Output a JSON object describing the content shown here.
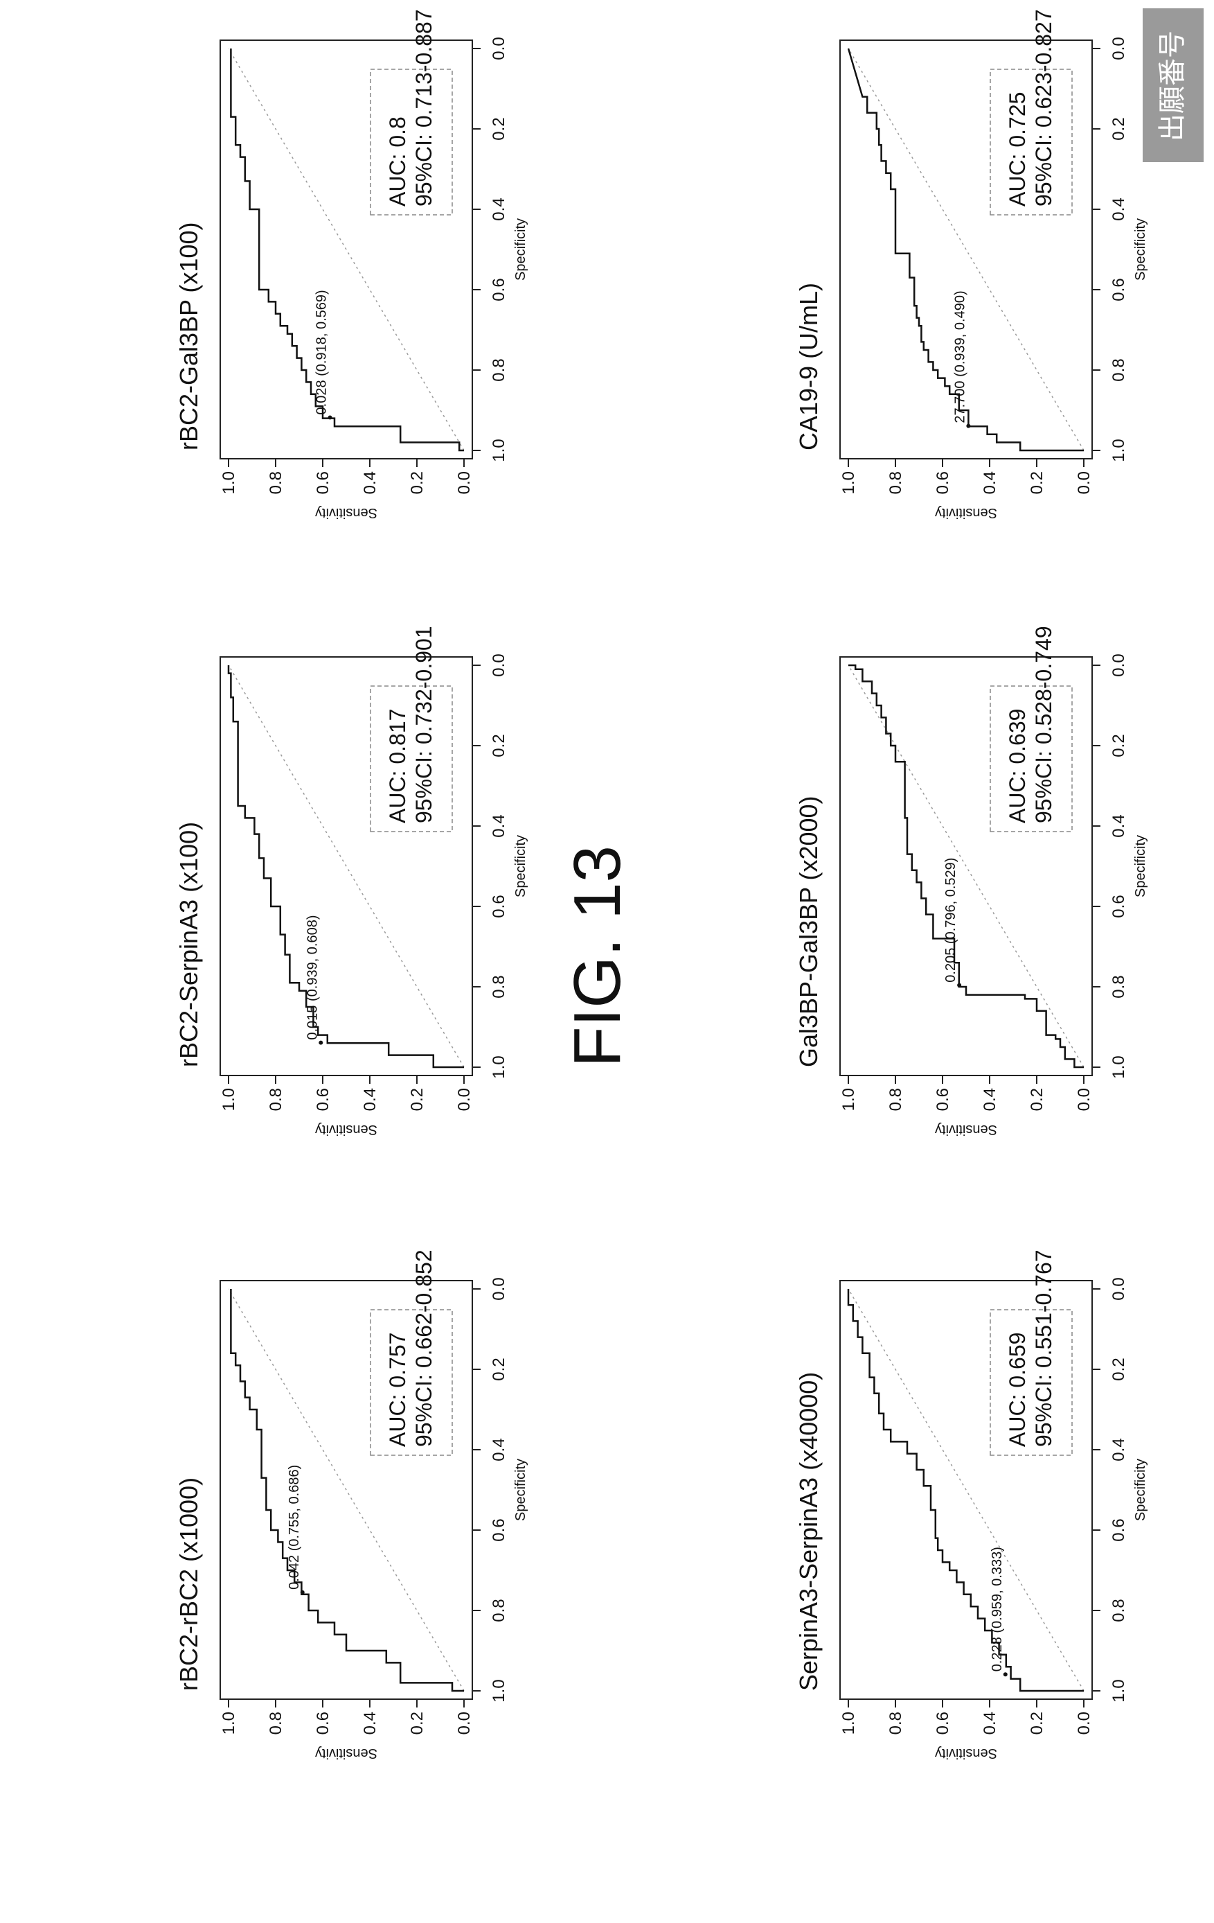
{
  "figure": {
    "title": "FIG. 13",
    "stamp": "出願番号"
  },
  "axes_labels": {
    "x": "Specificity",
    "y": "Sensitivity",
    "ticks": [
      "1.0",
      "0.8",
      "0.6",
      "0.4",
      "0.2",
      "0.0"
    ]
  },
  "chart_data": [
    {
      "type": "line",
      "title": "rBC2-rBC2 (x1000)",
      "xlabel": "Specificity",
      "ylabel": "Sensitivity",
      "xlim": [
        1.0,
        0.0
      ],
      "ylim": [
        0.0,
        1.0
      ],
      "auc_text": "AUC: 0.757",
      "ci_text": "95%CI: 0.662-0.852",
      "threshold_text": "0.042 (0.755, 0.686)",
      "threshold_point": [
        0.755,
        0.686
      ],
      "roc": [
        [
          1.0,
          0.0
        ],
        [
          1.0,
          0.05
        ],
        [
          0.98,
          0.05
        ],
        [
          0.98,
          0.27
        ],
        [
          0.93,
          0.27
        ],
        [
          0.93,
          0.33
        ],
        [
          0.9,
          0.33
        ],
        [
          0.9,
          0.5
        ],
        [
          0.86,
          0.5
        ],
        [
          0.86,
          0.55
        ],
        [
          0.83,
          0.55
        ],
        [
          0.83,
          0.62
        ],
        [
          0.8,
          0.62
        ],
        [
          0.8,
          0.66
        ],
        [
          0.76,
          0.66
        ],
        [
          0.76,
          0.69
        ],
        [
          0.73,
          0.69
        ],
        [
          0.73,
          0.72
        ],
        [
          0.7,
          0.72
        ],
        [
          0.7,
          0.75
        ],
        [
          0.67,
          0.75
        ],
        [
          0.67,
          0.77
        ],
        [
          0.63,
          0.77
        ],
        [
          0.63,
          0.79
        ],
        [
          0.6,
          0.79
        ],
        [
          0.6,
          0.82
        ],
        [
          0.55,
          0.82
        ],
        [
          0.55,
          0.84
        ],
        [
          0.47,
          0.84
        ],
        [
          0.47,
          0.86
        ],
        [
          0.35,
          0.86
        ],
        [
          0.35,
          0.88
        ],
        [
          0.3,
          0.88
        ],
        [
          0.3,
          0.91
        ],
        [
          0.27,
          0.91
        ],
        [
          0.27,
          0.93
        ],
        [
          0.23,
          0.93
        ],
        [
          0.23,
          0.95
        ],
        [
          0.19,
          0.95
        ],
        [
          0.19,
          0.97
        ],
        [
          0.16,
          0.97
        ],
        [
          0.16,
          0.99
        ],
        [
          0.0,
          0.99
        ]
      ]
    },
    {
      "type": "line",
      "title": "rBC2-SerpinA3 (x100)",
      "xlabel": "Specificity",
      "ylabel": "Sensitivity",
      "xlim": [
        1.0,
        0.0
      ],
      "ylim": [
        0.0,
        1.0
      ],
      "auc_text": "AUC: 0.817",
      "ci_text": "95%CI: 0.732-0.901",
      "threshold_text": "0.015 (0.939, 0.608)",
      "threshold_point": [
        0.939,
        0.608
      ],
      "roc": [
        [
          1.0,
          0.0
        ],
        [
          1.0,
          0.13
        ],
        [
          0.97,
          0.13
        ],
        [
          0.97,
          0.32
        ],
        [
          0.94,
          0.32
        ],
        [
          0.94,
          0.58
        ],
        [
          0.92,
          0.58
        ],
        [
          0.92,
          0.62
        ],
        [
          0.9,
          0.62
        ],
        [
          0.9,
          0.64
        ],
        [
          0.85,
          0.64
        ],
        [
          0.85,
          0.67
        ],
        [
          0.81,
          0.67
        ],
        [
          0.81,
          0.7
        ],
        [
          0.79,
          0.7
        ],
        [
          0.79,
          0.74
        ],
        [
          0.72,
          0.74
        ],
        [
          0.72,
          0.76
        ],
        [
          0.67,
          0.76
        ],
        [
          0.67,
          0.78
        ],
        [
          0.6,
          0.78
        ],
        [
          0.6,
          0.82
        ],
        [
          0.53,
          0.82
        ],
        [
          0.53,
          0.85
        ],
        [
          0.48,
          0.85
        ],
        [
          0.48,
          0.87
        ],
        [
          0.42,
          0.87
        ],
        [
          0.42,
          0.89
        ],
        [
          0.38,
          0.89
        ],
        [
          0.38,
          0.93
        ],
        [
          0.35,
          0.93
        ],
        [
          0.35,
          0.96
        ],
        [
          0.14,
          0.96
        ],
        [
          0.14,
          0.98
        ],
        [
          0.08,
          0.98
        ],
        [
          0.08,
          0.99
        ],
        [
          0.02,
          0.99
        ],
        [
          0.02,
          1.0
        ],
        [
          0.0,
          1.0
        ]
      ]
    },
    {
      "type": "line",
      "title": "rBC2-Gal3BP (x100)",
      "xlabel": "Specificity",
      "ylabel": "Sensitivity",
      "xlim": [
        1.0,
        0.0
      ],
      "ylim": [
        0.0,
        1.0
      ],
      "auc_text": "AUC: 0.8",
      "ci_text": "95%CI: 0.713-0.887",
      "threshold_text": "0.028 (0.918, 0.569)",
      "threshold_point": [
        0.918,
        0.569
      ],
      "roc": [
        [
          1.0,
          0.0
        ],
        [
          1.0,
          0.02
        ],
        [
          0.98,
          0.02
        ],
        [
          0.98,
          0.27
        ],
        [
          0.94,
          0.27
        ],
        [
          0.94,
          0.55
        ],
        [
          0.92,
          0.55
        ],
        [
          0.92,
          0.6
        ],
        [
          0.89,
          0.6
        ],
        [
          0.89,
          0.63
        ],
        [
          0.86,
          0.63
        ],
        [
          0.86,
          0.65
        ],
        [
          0.83,
          0.65
        ],
        [
          0.83,
          0.67
        ],
        [
          0.8,
          0.67
        ],
        [
          0.8,
          0.69
        ],
        [
          0.77,
          0.69
        ],
        [
          0.77,
          0.71
        ],
        [
          0.74,
          0.71
        ],
        [
          0.74,
          0.73
        ],
        [
          0.71,
          0.73
        ],
        [
          0.71,
          0.75
        ],
        [
          0.69,
          0.75
        ],
        [
          0.69,
          0.78
        ],
        [
          0.66,
          0.78
        ],
        [
          0.66,
          0.8
        ],
        [
          0.63,
          0.8
        ],
        [
          0.63,
          0.83
        ],
        [
          0.6,
          0.83
        ],
        [
          0.6,
          0.87
        ],
        [
          0.4,
          0.87
        ],
        [
          0.4,
          0.91
        ],
        [
          0.33,
          0.91
        ],
        [
          0.33,
          0.93
        ],
        [
          0.27,
          0.93
        ],
        [
          0.27,
          0.95
        ],
        [
          0.24,
          0.95
        ],
        [
          0.24,
          0.97
        ],
        [
          0.17,
          0.97
        ],
        [
          0.17,
          0.99
        ],
        [
          0.0,
          0.99
        ]
      ]
    },
    {
      "type": "line",
      "title": "SerpinA3-SerpinA3 (x40000)",
      "xlabel": "Specificity",
      "ylabel": "Sensitivity",
      "xlim": [
        1.0,
        0.0
      ],
      "ylim": [
        0.0,
        1.0
      ],
      "auc_text": "AUC: 0.659",
      "ci_text": "95%CI: 0.551-0.767",
      "threshold_text": "0.228 (0.959, 0.333)",
      "threshold_point": [
        0.959,
        0.333
      ],
      "roc": [
        [
          1.0,
          0.0
        ],
        [
          1.0,
          0.27
        ],
        [
          0.97,
          0.27
        ],
        [
          0.97,
          0.31
        ],
        [
          0.94,
          0.31
        ],
        [
          0.94,
          0.33
        ],
        [
          0.91,
          0.33
        ],
        [
          0.91,
          0.36
        ],
        [
          0.88,
          0.36
        ],
        [
          0.88,
          0.39
        ],
        [
          0.85,
          0.39
        ],
        [
          0.85,
          0.42
        ],
        [
          0.82,
          0.42
        ],
        [
          0.82,
          0.45
        ],
        [
          0.79,
          0.45
        ],
        [
          0.79,
          0.48
        ],
        [
          0.76,
          0.48
        ],
        [
          0.76,
          0.51
        ],
        [
          0.73,
          0.51
        ],
        [
          0.73,
          0.54
        ],
        [
          0.7,
          0.54
        ],
        [
          0.7,
          0.57
        ],
        [
          0.68,
          0.57
        ],
        [
          0.68,
          0.6
        ],
        [
          0.65,
          0.6
        ],
        [
          0.65,
          0.62
        ],
        [
          0.62,
          0.62
        ],
        [
          0.62,
          0.63
        ],
        [
          0.55,
          0.63
        ],
        [
          0.55,
          0.65
        ],
        [
          0.49,
          0.65
        ],
        [
          0.49,
          0.68
        ],
        [
          0.45,
          0.68
        ],
        [
          0.45,
          0.71
        ],
        [
          0.41,
          0.71
        ],
        [
          0.41,
          0.75
        ],
        [
          0.38,
          0.75
        ],
        [
          0.38,
          0.82
        ],
        [
          0.35,
          0.82
        ],
        [
          0.35,
          0.85
        ],
        [
          0.31,
          0.85
        ],
        [
          0.31,
          0.87
        ],
        [
          0.26,
          0.87
        ],
        [
          0.26,
          0.89
        ],
        [
          0.22,
          0.89
        ],
        [
          0.22,
          0.91
        ],
        [
          0.16,
          0.91
        ],
        [
          0.16,
          0.94
        ],
        [
          0.12,
          0.94
        ],
        [
          0.12,
          0.96
        ],
        [
          0.08,
          0.96
        ],
        [
          0.08,
          0.98
        ],
        [
          0.04,
          0.98
        ],
        [
          0.04,
          1.0
        ],
        [
          0.0,
          1.0
        ]
      ]
    },
    {
      "type": "line",
      "title": "Gal3BP-Gal3BP (x2000)",
      "xlabel": "Specificity",
      "ylabel": "Sensitivity",
      "xlim": [
        1.0,
        0.0
      ],
      "ylim": [
        0.0,
        1.0
      ],
      "auc_text": "AUC: 0.639",
      "ci_text": "95%CI: 0.528-0.749",
      "threshold_text": "0.205 (0.796, 0.529)",
      "threshold_point": [
        0.796,
        0.529
      ],
      "roc": [
        [
          1.0,
          0.0
        ],
        [
          1.0,
          0.04
        ],
        [
          0.98,
          0.04
        ],
        [
          0.98,
          0.08
        ],
        [
          0.95,
          0.08
        ],
        [
          0.95,
          0.1
        ],
        [
          0.93,
          0.1
        ],
        [
          0.93,
          0.12
        ],
        [
          0.92,
          0.12
        ],
        [
          0.92,
          0.16
        ],
        [
          0.86,
          0.16
        ],
        [
          0.86,
          0.2
        ],
        [
          0.83,
          0.2
        ],
        [
          0.83,
          0.25
        ],
        [
          0.82,
          0.25
        ],
        [
          0.82,
          0.5
        ],
        [
          0.8,
          0.5
        ],
        [
          0.8,
          0.53
        ],
        [
          0.74,
          0.53
        ],
        [
          0.74,
          0.55
        ],
        [
          0.68,
          0.55
        ],
        [
          0.68,
          0.64
        ],
        [
          0.62,
          0.64
        ],
        [
          0.62,
          0.67
        ],
        [
          0.58,
          0.67
        ],
        [
          0.58,
          0.69
        ],
        [
          0.54,
          0.69
        ],
        [
          0.54,
          0.71
        ],
        [
          0.51,
          0.71
        ],
        [
          0.51,
          0.73
        ],
        [
          0.47,
          0.73
        ],
        [
          0.47,
          0.75
        ],
        [
          0.38,
          0.75
        ],
        [
          0.38,
          0.76
        ],
        [
          0.24,
          0.76
        ],
        [
          0.24,
          0.8
        ],
        [
          0.2,
          0.8
        ],
        [
          0.2,
          0.82
        ],
        [
          0.17,
          0.82
        ],
        [
          0.17,
          0.84
        ],
        [
          0.13,
          0.84
        ],
        [
          0.13,
          0.86
        ],
        [
          0.1,
          0.86
        ],
        [
          0.1,
          0.88
        ],
        [
          0.07,
          0.88
        ],
        [
          0.07,
          0.9
        ],
        [
          0.04,
          0.9
        ],
        [
          0.04,
          0.94
        ],
        [
          0.01,
          0.94
        ],
        [
          0.01,
          0.97
        ],
        [
          0.0,
          0.97
        ],
        [
          0.0,
          1.0
        ]
      ]
    },
    {
      "type": "line",
      "title": "CA19-9 (U/mL)",
      "xlabel": "Specificity",
      "ylabel": "Sensitivity",
      "xlim": [
        1.0,
        0.0
      ],
      "ylim": [
        0.0,
        1.0
      ],
      "auc_text": "AUC: 0.725",
      "ci_text": "95%CI: 0.623-0.827",
      "threshold_text": "27.700 (0.939, 0.490)",
      "threshold_point": [
        0.939,
        0.49
      ],
      "roc": [
        [
          1.0,
          0.0
        ],
        [
          1.0,
          0.27
        ],
        [
          0.98,
          0.27
        ],
        [
          0.98,
          0.37
        ],
        [
          0.96,
          0.37
        ],
        [
          0.96,
          0.41
        ],
        [
          0.94,
          0.41
        ],
        [
          0.94,
          0.49
        ],
        [
          0.9,
          0.49
        ],
        [
          0.9,
          0.53
        ],
        [
          0.86,
          0.53
        ],
        [
          0.86,
          0.57
        ],
        [
          0.84,
          0.57
        ],
        [
          0.84,
          0.59
        ],
        [
          0.82,
          0.59
        ],
        [
          0.82,
          0.62
        ],
        [
          0.8,
          0.62
        ],
        [
          0.8,
          0.64
        ],
        [
          0.78,
          0.64
        ],
        [
          0.78,
          0.66
        ],
        [
          0.75,
          0.66
        ],
        [
          0.75,
          0.68
        ],
        [
          0.73,
          0.68
        ],
        [
          0.73,
          0.69
        ],
        [
          0.69,
          0.69
        ],
        [
          0.69,
          0.7
        ],
        [
          0.67,
          0.7
        ],
        [
          0.67,
          0.71
        ],
        [
          0.64,
          0.71
        ],
        [
          0.64,
          0.72
        ],
        [
          0.57,
          0.72
        ],
        [
          0.57,
          0.74
        ],
        [
          0.51,
          0.74
        ],
        [
          0.51,
          0.8
        ],
        [
          0.35,
          0.8
        ],
        [
          0.35,
          0.82
        ],
        [
          0.31,
          0.82
        ],
        [
          0.31,
          0.84
        ],
        [
          0.28,
          0.84
        ],
        [
          0.28,
          0.86
        ],
        [
          0.24,
          0.86
        ],
        [
          0.24,
          0.87
        ],
        [
          0.2,
          0.87
        ],
        [
          0.2,
          0.88
        ],
        [
          0.16,
          0.88
        ],
        [
          0.16,
          0.92
        ],
        [
          0.12,
          0.92
        ],
        [
          0.12,
          0.94
        ],
        [
          0.08,
          0.96
        ],
        [
          0.04,
          0.98
        ],
        [
          0.0,
          1.0
        ]
      ]
    }
  ]
}
